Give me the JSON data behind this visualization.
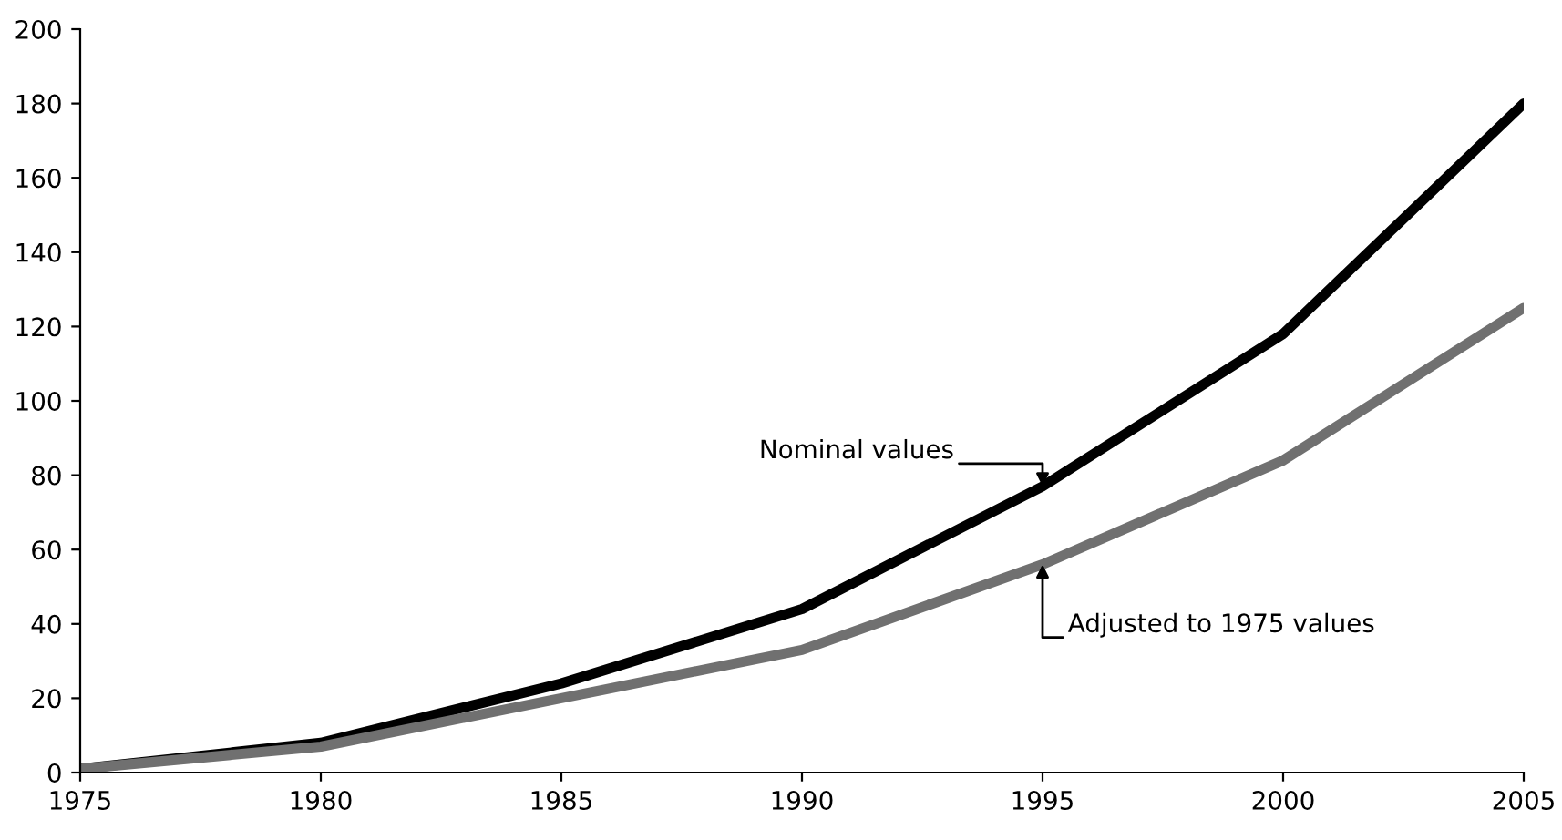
{
  "chart_data": {
    "type": "line",
    "x": [
      1975,
      1980,
      1985,
      1990,
      1995,
      2000,
      2005
    ],
    "series": [
      {
        "name": "Nominal values",
        "color": "#000000",
        "values": [
          1,
          8,
          24,
          44,
          77,
          118,
          180
        ]
      },
      {
        "name": "Adjusted to 1975 values",
        "color": "#707070",
        "values": [
          1,
          7,
          20,
          33,
          56,
          84,
          125
        ]
      }
    ],
    "xlim": [
      1975,
      2005
    ],
    "xticks": [
      1975,
      1980,
      1985,
      1990,
      1995,
      2000,
      2005
    ],
    "ylim": [
      0,
      200
    ],
    "yticks": [
      0,
      20,
      40,
      60,
      80,
      100,
      120,
      140,
      160,
      180,
      200
    ],
    "grid": false,
    "legend": false,
    "marker": "none",
    "line_style": "solid"
  }
}
